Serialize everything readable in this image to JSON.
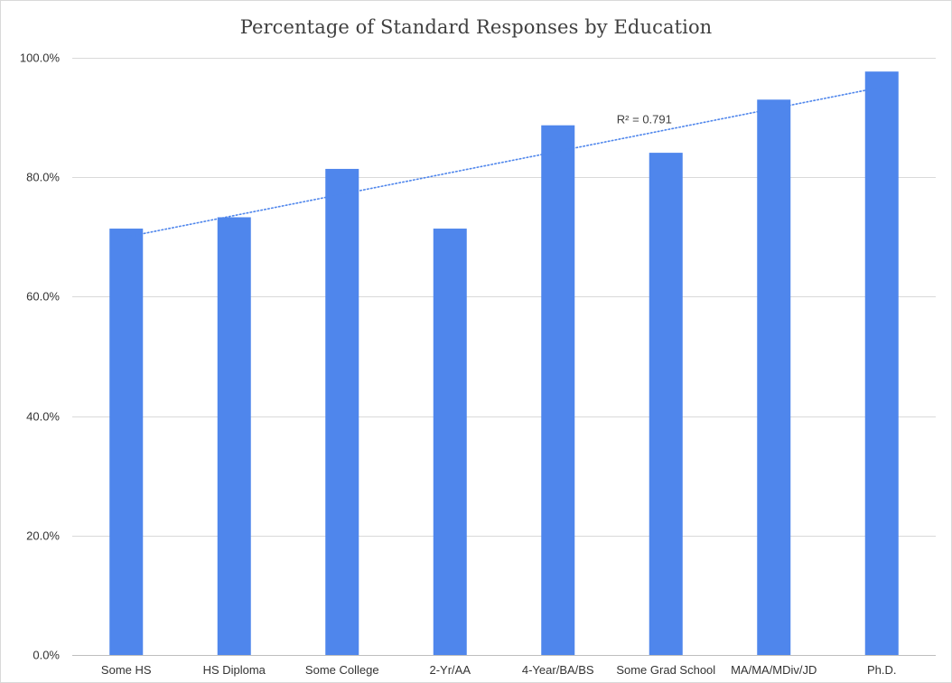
{
  "chart_data": {
    "type": "bar",
    "title": "Percentage of Standard Responses by Education",
    "xlabel": "",
    "ylabel": "",
    "categories": [
      "Some HS",
      "HS Diploma",
      "Some College",
      "2-Yr/AA",
      "4-Year/BA/BS",
      "Some Grad School",
      "MA/MA/MDiv/JD",
      "Ph.D."
    ],
    "values": [
      71.4,
      73.3,
      81.4,
      71.4,
      88.7,
      84.1,
      93.0,
      97.7
    ],
    "ylim": [
      0,
      100
    ],
    "yticks": [
      0,
      20,
      40,
      60,
      80,
      100
    ],
    "ytick_labels": [
      "0.0%",
      "20.0%",
      "40.0%",
      "60.0%",
      "80.0%",
      "100.0%"
    ],
    "grid": true,
    "legend": "none",
    "bar_color": "#4F86EC",
    "trendline": {
      "type": "linear",
      "style": "dotted",
      "color": "#4F86EC",
      "start": 70.0,
      "end": 95.1,
      "r2_label": "R² = 0.791"
    }
  }
}
